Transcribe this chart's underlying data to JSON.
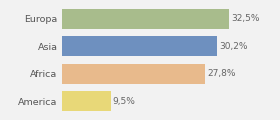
{
  "categories": [
    "Europa",
    "Asia",
    "Africa",
    "America"
  ],
  "values": [
    32.5,
    30.2,
    27.8,
    9.5
  ],
  "labels": [
    "32,5%",
    "30,2%",
    "27,8%",
    "9,5%"
  ],
  "bar_colors": [
    "#a8bc8c",
    "#6e90bf",
    "#e8ba8c",
    "#e8d878"
  ],
  "background_color": "#f2f2f2",
  "xlim": [
    0,
    38
  ],
  "figsize": [
    2.8,
    1.2
  ],
  "dpi": 100
}
